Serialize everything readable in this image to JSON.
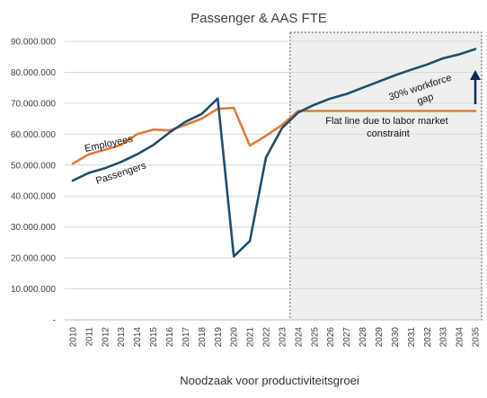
{
  "chart_data": {
    "type": "line",
    "title": "Passenger & AAS FTE",
    "xlabel": "Noodzaak voor productiviteitsgroei",
    "ylabel": "",
    "x": [
      "2010",
      "2011",
      "2012",
      "2013",
      "2014",
      "2015",
      "2016",
      "2017",
      "2018",
      "2019",
      "2020",
      "2021",
      "2022",
      "2023",
      "2024",
      "2025",
      "2026",
      "2027",
      "2028",
      "2029",
      "2030",
      "2031",
      "2032",
      "2033",
      "2034",
      "2035"
    ],
    "ylim": [
      0,
      90000000
    ],
    "yticks": [
      0,
      10000000,
      20000000,
      30000000,
      40000000,
      50000000,
      60000000,
      70000000,
      80000000,
      90000000
    ],
    "ytick_labels": [
      "-",
      "10.000.000",
      "20.000.000",
      "30.000.000",
      "40.000.000",
      "50.000.000",
      "60.000.000",
      "70.000.000",
      "80.000.000",
      "90.000.000"
    ],
    "grid": "horizontal",
    "series": [
      {
        "name": "Employees",
        "color": "#E07B3A",
        "values": [
          50500000,
          53500000,
          55000000,
          56500000,
          60000000,
          61500000,
          61200000,
          63000000,
          65000000,
          68200000,
          68500000,
          56300000,
          59500000,
          63000000,
          67500000,
          67500000,
          67500000,
          67500000,
          67500000,
          67500000,
          67500000,
          67500000,
          67500000,
          67500000,
          67500000,
          67500000
        ]
      },
      {
        "name": "Passengers",
        "color": "#1F4E6E",
        "values": [
          45000000,
          47500000,
          49000000,
          51000000,
          53500000,
          56500000,
          60500000,
          64000000,
          66500000,
          71500000,
          20500000,
          25500000,
          52500000,
          62000000,
          67000000,
          69500000,
          71500000,
          73000000,
          75000000,
          77000000,
          79000000,
          80800000,
          82500000,
          84500000,
          85800000,
          87500000
        ]
      }
    ],
    "highlight_region": {
      "from": "2024",
      "to": "2035",
      "fill": "#EEF0EF"
    },
    "annotations": {
      "flat_line": "Flat line due to labor market constraint",
      "gap": "30% workforce gap"
    }
  }
}
